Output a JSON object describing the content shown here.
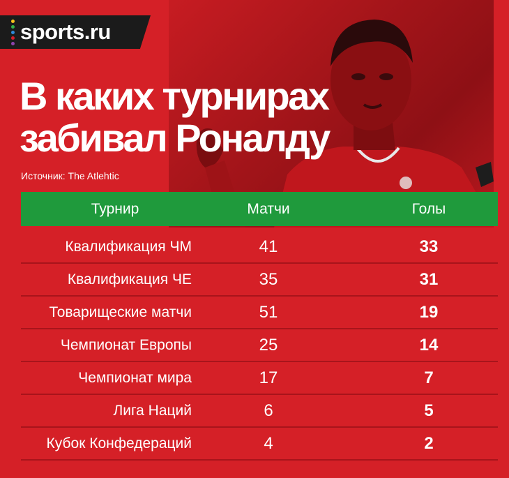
{
  "logo": {
    "text": "sports.ru",
    "dot_colors": [
      "#f6c21b",
      "#33b24a",
      "#2e8bd9",
      "#d81f2a",
      "#8e44ad"
    ]
  },
  "title": {
    "line1": "В каких турнирах",
    "line2": "забивал Роналду"
  },
  "source": "Источник: The Atlehtic",
  "colors": {
    "background": "#d52027",
    "header": "#1f9a3c",
    "logo_bg": "#1b1b1b"
  },
  "table": {
    "headers": [
      "Турнир",
      "Матчи",
      "Голы"
    ],
    "rows": [
      {
        "tournament": "Квалификация ЧМ",
        "matches": "41",
        "goals": "33"
      },
      {
        "tournament": "Квалификация ЧЕ",
        "matches": "35",
        "goals": "31"
      },
      {
        "tournament": "Товарищеские матчи",
        "matches": "51",
        "goals": "19"
      },
      {
        "tournament": "Чемпионат Европы",
        "matches": "25",
        "goals": "14"
      },
      {
        "tournament": "Чемпионат мира",
        "matches": "17",
        "goals": "7"
      },
      {
        "tournament": "Лига Наций",
        "matches": "6",
        "goals": "5"
      },
      {
        "tournament": "Кубок Конфедераций",
        "matches": "4",
        "goals": "2"
      }
    ]
  }
}
